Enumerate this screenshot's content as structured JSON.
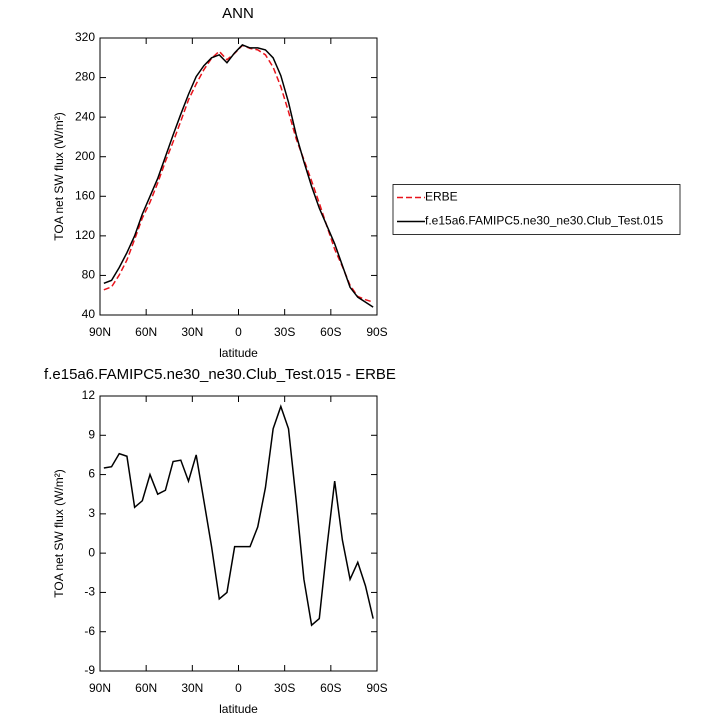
{
  "chart_data": [
    {
      "type": "line",
      "title": "ANN",
      "xlabel": "latitude",
      "ylabel": "TOA net SW flux (W/m²)",
      "x": [
        87.5,
        82.5,
        77.5,
        72.5,
        67.5,
        62.5,
        57.5,
        52.5,
        47.5,
        42.5,
        37.5,
        32.5,
        27.5,
        22.5,
        17.5,
        12.5,
        7.5,
        2.5,
        -2.5,
        -7.5,
        -12.5,
        -17.5,
        -22.5,
        -27.5,
        -32.5,
        -37.5,
        -42.5,
        -47.5,
        -52.5,
        -57.5,
        -62.5,
        -67.5,
        -72.5,
        -77.5,
        -82.5,
        -87.5
      ],
      "series": [
        {
          "name": "ERBE",
          "color": "#e8141c",
          "line_style": "dashed",
          "values": [
            65.5,
            68.4,
            80.4,
            95.6,
            116.5,
            138,
            154,
            173.5,
            195.2,
            215,
            235.9,
            257.5,
            273.5,
            288,
            299.5,
            306.5,
            298,
            304.5,
            312.5,
            309.5,
            308,
            303,
            290.5,
            270.8,
            245.5,
            218,
            197,
            175.5,
            153,
            129.5,
            106.5,
            89,
            70,
            58.7,
            55.5,
            53
          ]
        },
        {
          "name": "f.e15a6.FAMIPC5.ne30_ne30.Club_Test.015",
          "color": "#000000",
          "line_style": "solid",
          "values": [
            72,
            75,
            88,
            103,
            120,
            142,
            160,
            178,
            200,
            222,
            243,
            263,
            281,
            292,
            300,
            303,
            295,
            305,
            313,
            310,
            310,
            308,
            300,
            282,
            255,
            222,
            195,
            170,
            148,
            130,
            112,
            90,
            68,
            58,
            53,
            48
          ]
        }
      ],
      "xlim": [
        90,
        -90
      ],
      "xticks": [
        {
          "value": 90,
          "label": "90N"
        },
        {
          "value": 60,
          "label": "60N"
        },
        {
          "value": 30,
          "label": "30N"
        },
        0,
        {
          "value": -30,
          "label": "30S"
        },
        {
          "value": -60,
          "label": "60S"
        },
        {
          "value": -90,
          "label": "90S"
        }
      ],
      "ylim": [
        40,
        320
      ],
      "yticks": [
        40,
        80,
        120,
        160,
        200,
        240,
        280,
        320
      ],
      "legend": "right"
    },
    {
      "type": "line",
      "title": "f.e15a6.FAMIPC5.ne30_ne30.Club_Test.015 - ERBE",
      "xlabel": "latitude",
      "ylabel": "TOA net SW flux (W/m²)",
      "x": [
        87.5,
        82.5,
        77.5,
        72.5,
        67.5,
        62.5,
        57.5,
        52.5,
        47.5,
        42.5,
        37.5,
        32.5,
        27.5,
        22.5,
        17.5,
        12.5,
        7.5,
        2.5,
        -2.5,
        -7.5,
        -12.5,
        -17.5,
        -22.5,
        -27.5,
        -32.5,
        -37.5,
        -42.5,
        -47.5,
        -52.5,
        -57.5,
        -62.5,
        -67.5,
        -72.5,
        -77.5,
        -82.5,
        -87.5
      ],
      "series": [
        {
          "color": "#000000",
          "line_style": "solid",
          "values": [
            6.5,
            6.6,
            7.6,
            7.4,
            3.5,
            4.0,
            6.0,
            4.5,
            4.8,
            7.0,
            7.1,
            5.5,
            7.5,
            4.0,
            0.5,
            -3.5,
            -3.0,
            0.5,
            0.5,
            0.5,
            2.0,
            5.0,
            9.5,
            11.2,
            9.5,
            4.0,
            -2.0,
            -5.5,
            -5.0,
            0.5,
            5.5,
            1.0,
            -2.0,
            -0.7,
            -2.5,
            -5.0
          ]
        }
      ],
      "xlim": [
        90,
        -90
      ],
      "xticks": [
        {
          "value": 90,
          "label": "90N"
        },
        {
          "value": 60,
          "label": "60N"
        },
        {
          "value": 30,
          "label": "30N"
        },
        0,
        {
          "value": -30,
          "label": "30S"
        },
        {
          "value": -60,
          "label": "60S"
        },
        {
          "value": -90,
          "label": "90S"
        }
      ],
      "ylim": [
        -9,
        12
      ],
      "yticks": [
        -9,
        -6,
        -3,
        0,
        3,
        6,
        9,
        12
      ]
    }
  ]
}
